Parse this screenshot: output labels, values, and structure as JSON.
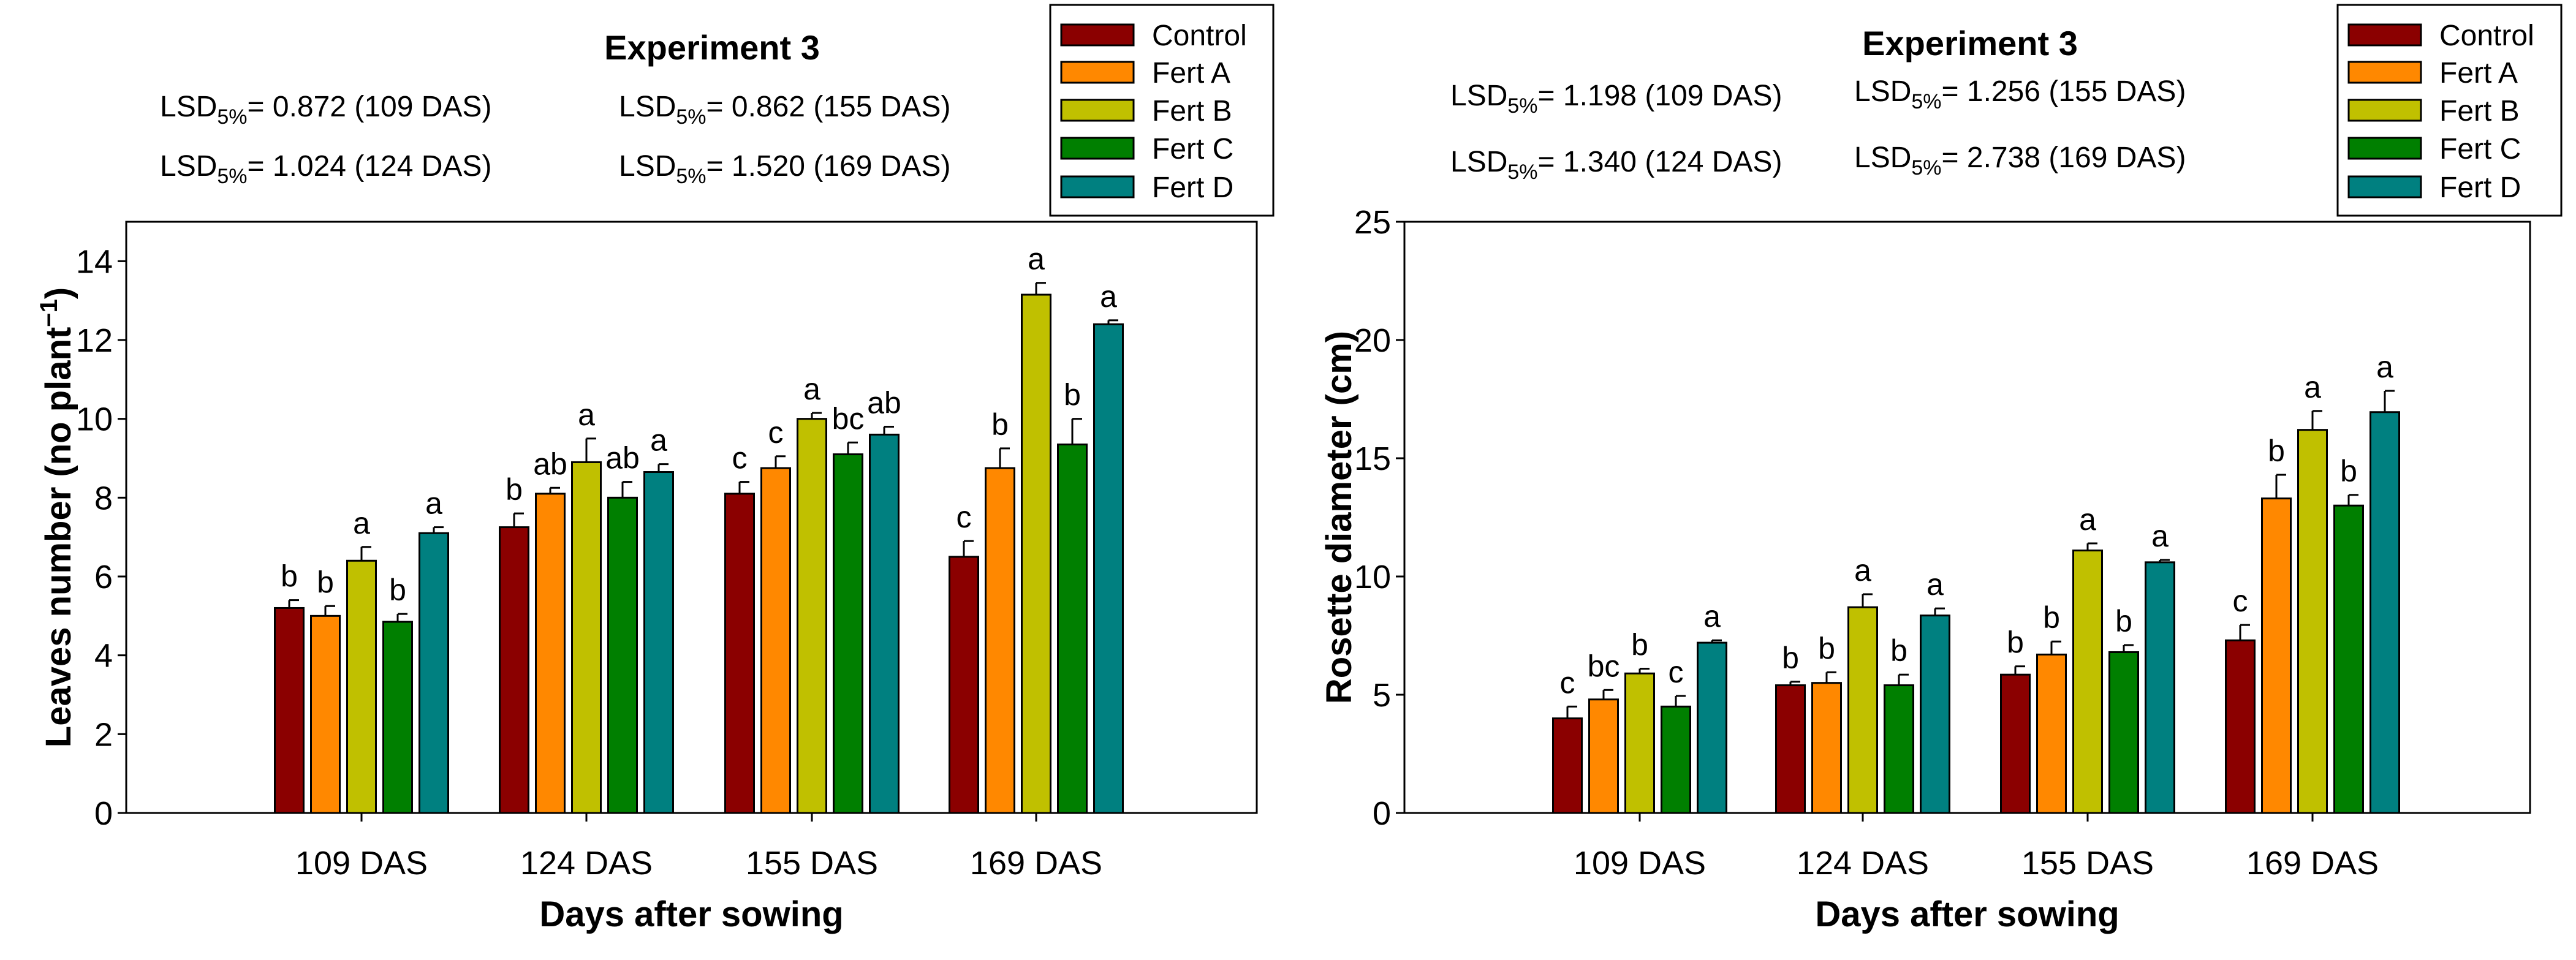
{
  "chart_data": [
    {
      "type": "bar",
      "title": "Experiment 3",
      "lsd": [
        {
          "label": "LSD",
          "sub": "5%",
          "text": "= 0.872 (109 DAS)"
        },
        {
          "label": "LSD",
          "sub": "5%",
          "text": "= 1.024 (124 DAS)"
        },
        {
          "label": "LSD",
          "sub": "5%",
          "text": "= 0.862 (155 DAS)"
        },
        {
          "label": "LSD",
          "sub": "5%",
          "text": "= 1.520 (169 DAS)"
        }
      ],
      "xlabel": "Days after sowing",
      "ylabel": "Leaves number (no plant",
      "ylabel_sup": "−1",
      "ylabel_end": ")",
      "ylim": [
        0,
        15
      ],
      "yticks": [
        0,
        2,
        4,
        6,
        8,
        10,
        12,
        14
      ],
      "categories": [
        "109 DAS",
        "124 DAS",
        "155 DAS",
        "169 DAS"
      ],
      "series": [
        {
          "name": "Control",
          "color": "#8B0000",
          "values": [
            5.2,
            7.25,
            8.1,
            6.5
          ],
          "err": [
            0.2,
            0.35,
            0.3,
            0.4
          ],
          "letters": [
            "b",
            "b",
            "c",
            "c"
          ]
        },
        {
          "name": "Fert A",
          "color": "#FF8800",
          "values": [
            5.0,
            8.1,
            8.75,
            8.75
          ],
          "err": [
            0.25,
            0.15,
            0.3,
            0.5
          ],
          "letters": [
            "b",
            "ab",
            "c",
            "b"
          ]
        },
        {
          "name": "Fert B",
          "color": "#C0C000",
          "values": [
            6.4,
            8.9,
            10.0,
            13.15
          ],
          "err": [
            0.35,
            0.6,
            0.15,
            0.3
          ],
          "letters": [
            "a",
            "a",
            "a",
            "a"
          ]
        },
        {
          "name": "Fert C",
          "color": "#007F00",
          "values": [
            4.85,
            8.0,
            9.1,
            9.35
          ],
          "err": [
            0.2,
            0.4,
            0.3,
            0.65
          ],
          "letters": [
            "b",
            "ab",
            "bc",
            "b"
          ]
        },
        {
          "name": "Fert D",
          "color": "#008080",
          "values": [
            7.1,
            8.65,
            9.6,
            12.4
          ],
          "err": [
            0.15,
            0.2,
            0.2,
            0.1
          ],
          "letters": [
            "a",
            "a",
            "ab",
            "a"
          ]
        }
      ],
      "legend": "top-right"
    },
    {
      "type": "bar",
      "title": "Experiment 3",
      "lsd": [
        {
          "label": "LSD",
          "sub": "5%",
          "text": "= 1.198 (109 DAS)"
        },
        {
          "label": "LSD",
          "sub": "5%",
          "text": "= 1.340 (124 DAS)"
        },
        {
          "label": "LSD",
          "sub": "5%",
          "text": "= 1.256 (155 DAS)"
        },
        {
          "label": "LSD",
          "sub": "5%",
          "text": "= 2.738 (169 DAS)"
        }
      ],
      "xlabel": "Days after sowing",
      "ylabel": "Rosette diameter (cm)",
      "ylabel_sup": "",
      "ylabel_end": "",
      "ylim": [
        0,
        25
      ],
      "yticks": [
        0,
        5,
        10,
        15,
        20,
        25
      ],
      "categories": [
        "109 DAS",
        "124 DAS",
        "155 DAS",
        "169 DAS"
      ],
      "series": [
        {
          "name": "Control",
          "color": "#8B0000",
          "values": [
            4.0,
            5.4,
            5.85,
            7.3
          ],
          "err": [
            0.5,
            0.15,
            0.35,
            0.65
          ],
          "letters": [
            "c",
            "b",
            "b",
            "c"
          ]
        },
        {
          "name": "Fert A",
          "color": "#FF8800",
          "values": [
            4.8,
            5.5,
            6.7,
            13.3
          ],
          "err": [
            0.4,
            0.45,
            0.55,
            1.0
          ],
          "letters": [
            "bc",
            "b",
            "b",
            "b"
          ]
        },
        {
          "name": "Fert B",
          "color": "#C0C000",
          "values": [
            5.9,
            8.7,
            11.1,
            16.2
          ],
          "err": [
            0.2,
            0.55,
            0.3,
            0.8
          ],
          "letters": [
            "b",
            "a",
            "a",
            "a"
          ]
        },
        {
          "name": "Fert C",
          "color": "#007F00",
          "values": [
            4.5,
            5.4,
            6.8,
            13.0
          ],
          "err": [
            0.45,
            0.45,
            0.3,
            0.45
          ],
          "letters": [
            "c",
            "b",
            "b",
            "b"
          ]
        },
        {
          "name": "Fert D",
          "color": "#008080",
          "values": [
            7.2,
            8.35,
            10.6,
            16.95
          ],
          "err": [
            0.1,
            0.3,
            0.1,
            0.9
          ],
          "letters": [
            "a",
            "a",
            "a",
            "a"
          ]
        }
      ],
      "legend": "top-right"
    }
  ]
}
